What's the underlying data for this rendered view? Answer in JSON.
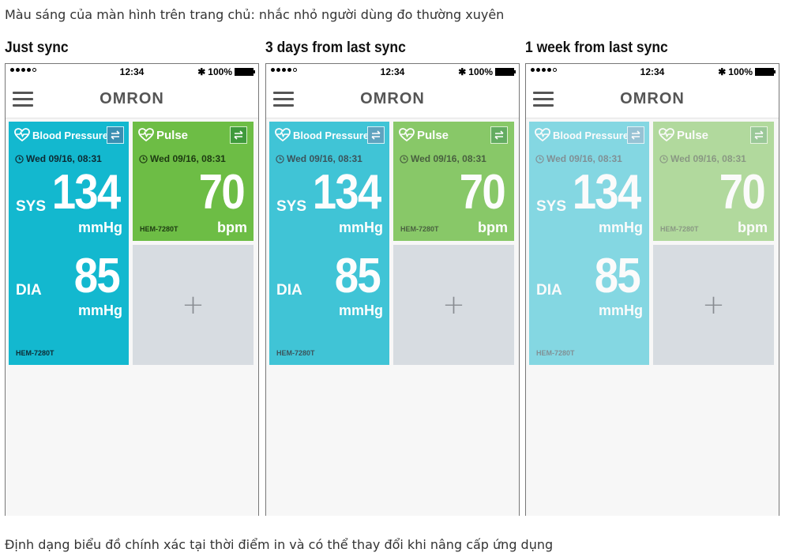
{
  "top_caption": "Màu sáng của màn hình trên trang chủ: nhắc nhỏ người dùng đo thường xuyên",
  "bottom_caption": "Định dạng biểu đồ chính xác tại thời điểm in và có thể thay đổi khi nâng cấp ứng dụng",
  "status_bar": {
    "time": "12:34",
    "battery": "100%",
    "bluetooth_icon": "bluetooth-icon"
  },
  "app": {
    "logo": "OMRON"
  },
  "tiles": {
    "blood_pressure": {
      "title": "Blood Pressure",
      "timestamp": "Wed 09/16, 08:31",
      "sys_label": "SYS",
      "sys_value": "134",
      "sys_unit": "mmHg",
      "dia_label": "DIA",
      "dia_value": "85",
      "dia_unit": "mmHg",
      "model": "HEM-7280T",
      "color": "#13b8cf"
    },
    "pulse": {
      "title": "Pulse",
      "timestamp": "Wed 09/16, 08:31",
      "value": "70",
      "unit": "bpm",
      "model": "HEM-7280T",
      "color": "#6dbd45"
    },
    "add": {
      "icon": "plus-icon",
      "symbol": "+"
    }
  },
  "panels": [
    {
      "heading": "Just sync",
      "tile_opacity_percent": 100
    },
    {
      "heading": "3 days from last sync",
      "tile_opacity_percent": 80
    },
    {
      "heading": "1 week from last sync",
      "tile_opacity_percent": 50
    }
  ]
}
